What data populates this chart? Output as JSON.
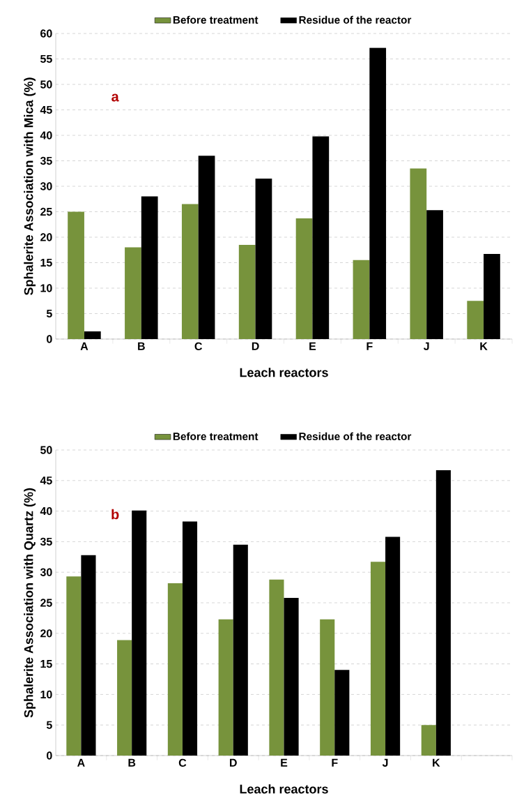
{
  "chart_data": [
    {
      "type": "bar",
      "xlabel": "Leach reactors",
      "ylabel": "Sphalerite Association with Mica (%)",
      "annotations": [
        "a"
      ],
      "categories": [
        "A",
        "B",
        "C",
        "D",
        "E",
        "F",
        "J",
        "K"
      ],
      "series": [
        {
          "name": "Before treatment",
          "color": "#77933c",
          "values": [
            25,
            18,
            26.5,
            18.5,
            23.7,
            15.5,
            33.5,
            7.5
          ]
        },
        {
          "name": "Residue of the reactor",
          "color": "#000000",
          "values": [
            1.5,
            28,
            36,
            31.5,
            39.8,
            57.2,
            25.3,
            16.7
          ]
        }
      ],
      "ylim": [
        0,
        60
      ],
      "yticks": [
        0,
        5,
        10,
        15,
        20,
        25,
        30,
        35,
        40,
        45,
        50,
        55,
        60
      ],
      "grid": "y",
      "legend": "top"
    },
    {
      "type": "bar",
      "xlabel": "Leach reactors",
      "ylabel": "Sphalerite Association with Quartz (%)",
      "annotations": [
        "b"
      ],
      "categories": [
        "A",
        "B",
        "C",
        "D",
        "E",
        "F",
        "J",
        "K",
        null
      ],
      "series": [
        {
          "name": "Before treatment",
          "color": "#77933c",
          "values": [
            29.3,
            18.9,
            28.2,
            22.3,
            28.8,
            22.3,
            31.7,
            5,
            null
          ]
        },
        {
          "name": "Residue of the reactor",
          "color": "#000000",
          "values": [
            32.8,
            40.1,
            38.3,
            34.5,
            25.8,
            14,
            35.8,
            46.7,
            null
          ]
        }
      ],
      "ylim": [
        0,
        50
      ],
      "yticks": [
        0,
        5,
        10,
        15,
        20,
        25,
        30,
        35,
        40,
        45,
        50
      ],
      "grid": "y",
      "legend": "top"
    }
  ]
}
